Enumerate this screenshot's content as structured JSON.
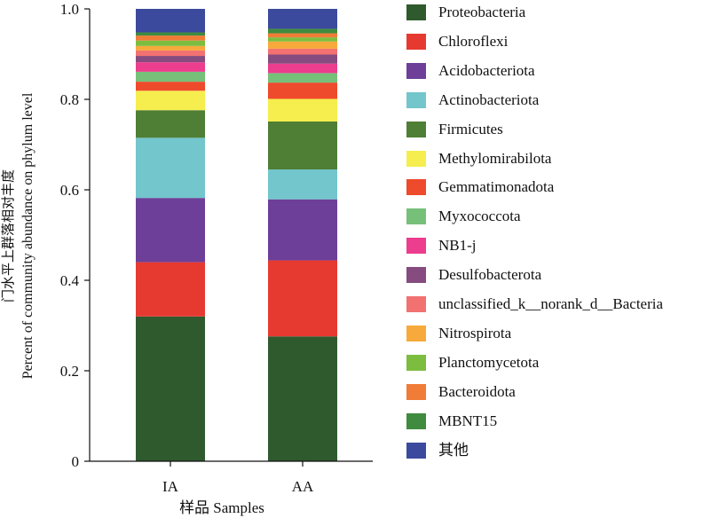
{
  "chart_data": {
    "type": "bar",
    "stacked": true,
    "categories": [
      "IA",
      "AA"
    ],
    "ylabel_zh": "门水平上群落相对丰度",
    "ylabel_en": "Percent of community abundance on phylum level",
    "xlabel": "样品 Samples",
    "ylim": [
      0,
      1.0
    ],
    "yticks": [
      "0",
      "0.2",
      "0.4",
      "0.6",
      "0.8",
      "1.0"
    ],
    "legend_position": "right",
    "series": [
      {
        "name": "Proteobacteria",
        "color": "#2f5a2e",
        "values": [
          0.32,
          0.276
        ]
      },
      {
        "name": "Chloroflexi",
        "color": "#e63a31",
        "values": [
          0.12,
          0.168
        ]
      },
      {
        "name": "Acidobacteriota",
        "color": "#6d3f98",
        "values": [
          0.142,
          0.135
        ]
      },
      {
        "name": "Actinobacteriota",
        "color": "#72c6cc",
        "values": [
          0.133,
          0.066
        ]
      },
      {
        "name": "Firmicutes",
        "color": "#4f7e35",
        "values": [
          0.061,
          0.106
        ]
      },
      {
        "name": "Methylomirabilota",
        "color": "#f5ee4e",
        "values": [
          0.043,
          0.05
        ]
      },
      {
        "name": "Gemmatimonadota",
        "color": "#ee4a2c",
        "values": [
          0.02,
          0.036
        ]
      },
      {
        "name": "Myxococcota",
        "color": "#76c07a",
        "values": [
          0.022,
          0.021
        ]
      },
      {
        "name": "NB1-j",
        "color": "#ec3d8e",
        "values": [
          0.021,
          0.021
        ]
      },
      {
        "name": "Desulfobacterota",
        "color": "#864b7f",
        "values": [
          0.014,
          0.02
        ]
      },
      {
        "name": "unclassified_k__norank_d__Bacteria",
        "color": "#f27171",
        "values": [
          0.012,
          0.013
        ]
      },
      {
        "name": "Nitrospirota",
        "color": "#f7a93c",
        "values": [
          0.01,
          0.016
        ]
      },
      {
        "name": "Planctomycetota",
        "color": "#7cbd3f",
        "values": [
          0.012,
          0.009
        ]
      },
      {
        "name": "Bacteroidota",
        "color": "#f07c37",
        "values": [
          0.011,
          0.009
        ]
      },
      {
        "name": "MBNT15",
        "color": "#3f8b3f",
        "values": [
          0.007,
          0.01
        ]
      },
      {
        "name": "其他",
        "color": "#3b4a9d",
        "values": [
          0.052,
          0.044
        ]
      }
    ]
  }
}
